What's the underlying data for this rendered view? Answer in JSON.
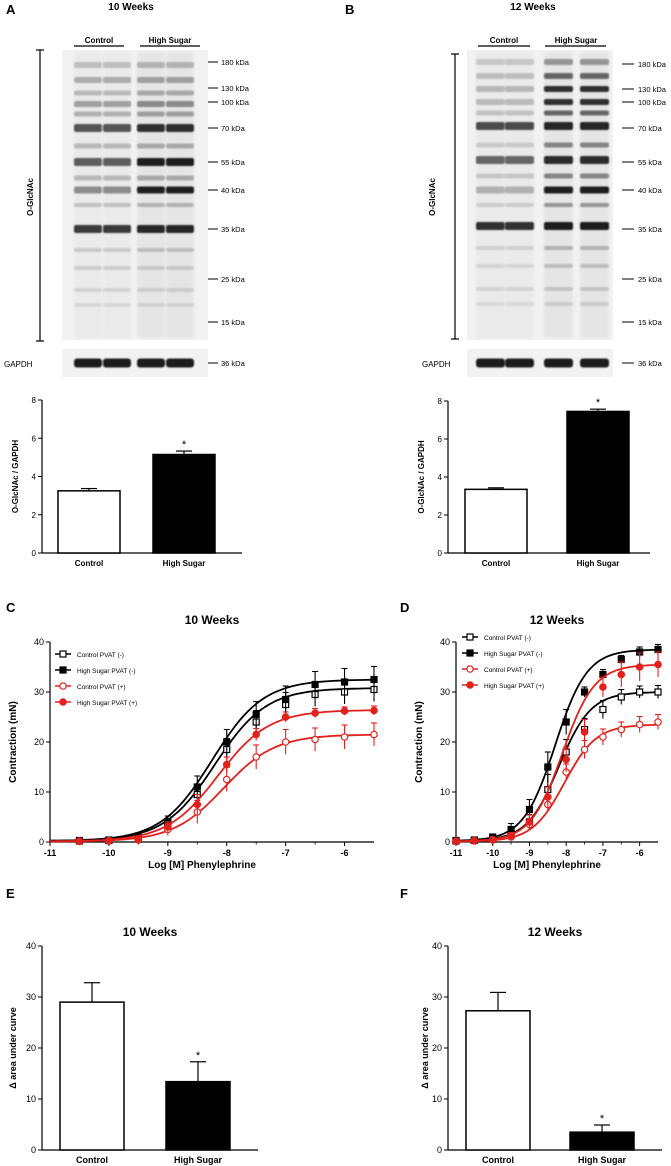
{
  "colors": {
    "black": "#000000",
    "red": "#e3211c",
    "white": "#ffffff",
    "blot_bg": "#f2f2f2",
    "band_dark": "#2a2a2a"
  },
  "panels": {
    "A": {
      "letter": "A",
      "title": "10 Weeks"
    },
    "B": {
      "letter": "B",
      "title": "12 Weeks"
    },
    "C": {
      "letter": "C"
    },
    "D": {
      "letter": "D"
    },
    "E": {
      "letter": "E"
    },
    "F": {
      "letter": "F"
    }
  },
  "blot": {
    "group_control": "Control",
    "group_high_sugar": "High Sugar",
    "side_label": "O-GlcNAc",
    "loading_label": "GAPDH",
    "markers": [
      "180 kDa",
      "130 kDa",
      "100 kDa",
      "70 kDa",
      "55 kDa",
      "40 kDa",
      "35 kDa",
      "25 kDa",
      "15 kDa"
    ],
    "gapdh_marker": "36 kDa"
  },
  "chart_data": [
    {
      "id": "A-bar",
      "type": "bar",
      "title": "",
      "xlabel": "",
      "ylabel": "O-GlcNAc / GAPDH",
      "ylim": [
        0,
        8
      ],
      "yticks": [
        "0",
        "2",
        "4",
        "6",
        "8"
      ],
      "categories": [
        "Control",
        "High Sugar"
      ],
      "values": [
        3.25,
        5.15
      ],
      "errors": [
        0.12,
        0.18
      ],
      "fills": [
        "#ffffff",
        "#000000"
      ],
      "significance": [
        "",
        "*"
      ]
    },
    {
      "id": "B-bar",
      "type": "bar",
      "title": "",
      "xlabel": "",
      "ylabel": "O-GlcNAc / GAPDH",
      "ylim": [
        0,
        8
      ],
      "yticks": [
        "0",
        "2",
        "4",
        "6",
        "8"
      ],
      "categories": [
        "Control",
        "High Sugar"
      ],
      "values": [
        3.35,
        7.45
      ],
      "errors": [
        0.08,
        0.12
      ],
      "fills": [
        "#ffffff",
        "#000000"
      ],
      "significance": [
        "",
        "*"
      ]
    },
    {
      "id": "C-line",
      "type": "line",
      "title": "10 Weeks",
      "xlabel": "Log [M] Phenylephrine",
      "ylabel": "Contraction (mN)",
      "xlim": [
        -11,
        -5.5
      ],
      "ylim": [
        0,
        40
      ],
      "xticks": [
        "-11",
        "-10",
        "-9",
        "-8",
        "-7",
        "-6"
      ],
      "yticks": [
        "0",
        "10",
        "20",
        "30",
        "40"
      ],
      "x": [
        -10.5,
        -10,
        -9.5,
        -9,
        -8.5,
        -8,
        -7.5,
        -7,
        -6.5,
        -6,
        -5.5
      ],
      "series": [
        {
          "name": "Control PVAT (-)",
          "values": [
            0.2,
            0.3,
            0.6,
            3.5,
            9.5,
            18.5,
            24.0,
            27.5,
            29.5,
            30.0,
            30.5
          ],
          "errors": [
            0.2,
            0.2,
            0.3,
            1.0,
            2.0,
            2.2,
            2.3,
            2.4,
            2.4,
            2.4,
            2.4
          ],
          "color": "#000000",
          "marker": "square",
          "filled": false,
          "fit": {
            "bottom": 0.2,
            "top": 30.8,
            "ec50": -8.2
          }
        },
        {
          "name": "High Sugar PVAT (-)",
          "values": [
            0.3,
            0.4,
            0.9,
            4.0,
            11.0,
            20.0,
            25.5,
            28.5,
            31.5,
            32.0,
            32.5
          ],
          "errors": [
            0.2,
            0.2,
            0.3,
            1.2,
            2.2,
            2.5,
            2.6,
            2.7,
            2.6,
            2.7,
            2.6
          ],
          "color": "#000000",
          "marker": "square",
          "filled": true,
          "fit": {
            "bottom": 0.2,
            "top": 32.5,
            "ec50": -8.25
          }
        },
        {
          "name": "Control PVAT (+)",
          "values": [
            0.1,
            0.2,
            0.4,
            2.5,
            6.0,
            12.5,
            17.0,
            20.0,
            20.5,
            21.0,
            21.5
          ],
          "errors": [
            0.2,
            0.2,
            0.3,
            1.2,
            2.3,
            2.4,
            2.4,
            2.5,
            2.3,
            2.4,
            2.3
          ],
          "color": "#e3211c",
          "marker": "circle",
          "filled": false,
          "fit": {
            "bottom": 0.1,
            "top": 21.5,
            "ec50": -8.05
          }
        },
        {
          "name": "High Sugar PVAT (+)",
          "values": [
            0.2,
            0.3,
            0.5,
            3.0,
            7.5,
            15.5,
            21.5,
            25.0,
            25.8,
            26.2,
            26.3
          ],
          "errors": [
            0.2,
            0.2,
            0.3,
            1.0,
            2.0,
            1.5,
            1.2,
            1.0,
            0.9,
            0.8,
            0.9
          ],
          "color": "#e3211c",
          "marker": "circle",
          "filled": true,
          "fit": {
            "bottom": 0.1,
            "top": 26.4,
            "ec50": -8.15
          }
        }
      ]
    },
    {
      "id": "D-line",
      "type": "line",
      "title": "12 Weeks",
      "xlabel": "Log [M] Phenylephrine",
      "ylabel": "Contraction (mN)",
      "xlim": [
        -11,
        -5.5
      ],
      "ylim": [
        0,
        40
      ],
      "xticks": [
        "-11",
        "-10",
        "-9",
        "-8",
        "-7",
        "-6"
      ],
      "yticks": [
        "0",
        "10",
        "20",
        "30",
        "40"
      ],
      "x": [
        -11,
        -10.5,
        -10,
        -9.5,
        -9,
        -8.5,
        -8,
        -7.5,
        -7,
        -6.5,
        -6,
        -5.5
      ],
      "series": [
        {
          "name": "Control PVAT (-)",
          "values": [
            0.2,
            0.3,
            0.6,
            1.5,
            4.0,
            10.5,
            18.0,
            22.5,
            26.5,
            29.0,
            30.0,
            30.0
          ],
          "errors": [
            0.2,
            0.2,
            0.3,
            0.8,
            1.5,
            3.0,
            2.5,
            2.2,
            1.8,
            1.5,
            1.2,
            1.3
          ],
          "color": "#000000",
          "marker": "square",
          "filled": false,
          "fit": {
            "bottom": 0.2,
            "top": 30.0,
            "ec50": -8.2
          }
        },
        {
          "name": "High Sugar PVAT (-)",
          "values": [
            0.3,
            0.4,
            1.0,
            2.5,
            6.5,
            15.0,
            24.0,
            30.0,
            33.5,
            36.5,
            38.0,
            38.5
          ],
          "errors": [
            0.2,
            0.2,
            0.5,
            1.2,
            2.0,
            3.0,
            2.5,
            1.0,
            1.0,
            0.8,
            1.0,
            1.0
          ],
          "color": "#000000",
          "marker": "square",
          "filled": true,
          "fit": {
            "bottom": 0.2,
            "top": 38.5,
            "ec50": -8.3
          }
        },
        {
          "name": "Control PVAT (+)",
          "values": [
            0.1,
            0.2,
            0.4,
            1.0,
            3.5,
            7.5,
            14.0,
            18.5,
            21.0,
            22.5,
            23.5,
            24.0
          ],
          "errors": [
            0.2,
            0.2,
            0.3,
            0.6,
            1.2,
            1.5,
            1.6,
            1.8,
            1.6,
            1.5,
            1.6,
            1.5
          ],
          "color": "#e3211c",
          "marker": "circle",
          "filled": false,
          "fit": {
            "bottom": 0.1,
            "top": 23.5,
            "ec50": -8.05
          }
        },
        {
          "name": "High Sugar PVAT (+)",
          "values": [
            0.2,
            0.3,
            0.5,
            1.2,
            4.0,
            9.0,
            16.5,
            22.0,
            31.0,
            33.5,
            35.0,
            35.5
          ],
          "errors": [
            0.2,
            0.2,
            0.3,
            0.7,
            1.4,
            2.0,
            2.5,
            2.5,
            2.0,
            2.5,
            2.8,
            2.5
          ],
          "color": "#e3211c",
          "marker": "circle",
          "filled": true,
          "fit": {
            "bottom": 0.1,
            "top": 35.5,
            "ec50": -8.1
          }
        }
      ]
    },
    {
      "id": "E-bar",
      "type": "bar",
      "title": "10 Weeks",
      "xlabel": "",
      "ylabel": "Δ area under curve",
      "ylim": [
        0,
        40
      ],
      "yticks": [
        "0",
        "10",
        "20",
        "30",
        "40"
      ],
      "categories": [
        "Control",
        "High Sugar"
      ],
      "values": [
        29.0,
        13.4
      ],
      "errors": [
        3.8,
        3.9
      ],
      "fills": [
        "#ffffff",
        "#000000"
      ],
      "significance": [
        "",
        "*"
      ]
    },
    {
      "id": "F-bar",
      "type": "bar",
      "title": "12 Weeks",
      "xlabel": "",
      "ylabel": "Δ area under curve",
      "ylim": [
        0,
        40
      ],
      "yticks": [
        "0",
        "10",
        "20",
        "30",
        "40"
      ],
      "categories": [
        "Control",
        "High Sugar"
      ],
      "values": [
        27.3,
        3.5
      ],
      "errors": [
        3.6,
        1.4
      ],
      "fills": [
        "#ffffff",
        "#000000"
      ],
      "significance": [
        "",
        "*"
      ]
    }
  ]
}
